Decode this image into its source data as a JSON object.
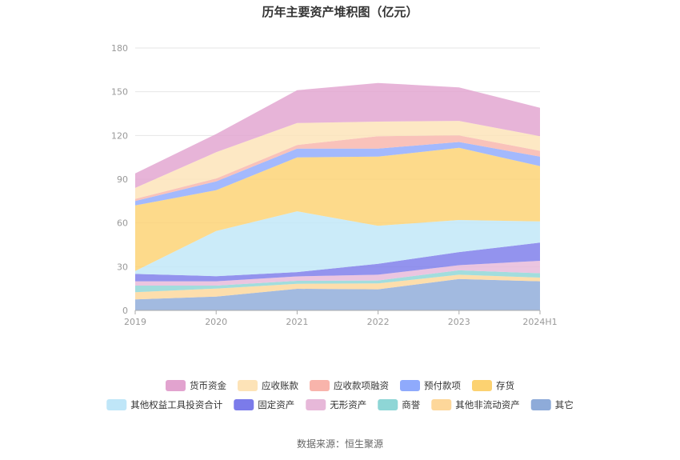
{
  "chart_data": {
    "type": "area",
    "stacked": true,
    "title": "历年主要资产堆积图（亿元）",
    "x": [
      "2019",
      "2020",
      "2021",
      "2022",
      "2023",
      "2024H1"
    ],
    "y_ticks": [
      0,
      30,
      60,
      90,
      120,
      150,
      180
    ],
    "ylim": [
      0,
      180
    ],
    "grid": true,
    "series": [
      {
        "name": "其它",
        "color": "#8eabd9",
        "values": [
          7.5,
          9.5,
          14.8,
          14.5,
          21.5,
          20.0
        ]
      },
      {
        "name": "其他非流动资产",
        "color": "#fdd79a",
        "values": [
          5.0,
          5.5,
          3.5,
          4.0,
          3.0,
          2.5
        ]
      },
      {
        "name": "商誉",
        "color": "#8ed6d6",
        "values": [
          4.5,
          2.0,
          2.0,
          2.0,
          3.0,
          3.0
        ]
      },
      {
        "name": "无形资产",
        "color": "#e7b8d9",
        "values": [
          3.0,
          3.0,
          3.0,
          4.0,
          3.5,
          8.5
        ]
      },
      {
        "name": "固定资产",
        "color": "#7b7bea",
        "values": [
          5.0,
          3.5,
          3.0,
          7.5,
          9.0,
          12.5
        ]
      },
      {
        "name": "其他权益工具投资合计",
        "color": "#bfe6f8",
        "values": [
          2.0,
          31.0,
          41.7,
          26.0,
          22.0,
          14.5
        ]
      },
      {
        "name": "存货",
        "color": "#fcd271",
        "values": [
          45.0,
          28.0,
          37.0,
          47.5,
          49.5,
          38.0
        ]
      },
      {
        "name": "预付款项",
        "color": "#8faafc",
        "values": [
          3.0,
          6.0,
          6.0,
          5.5,
          4.0,
          6.5
        ]
      },
      {
        "name": "应收款项融资",
        "color": "#f8b4ab",
        "values": [
          1.5,
          2.0,
          2.5,
          8.5,
          4.5,
          4.0
        ]
      },
      {
        "name": "应收账款",
        "color": "#fde3b7",
        "values": [
          7.5,
          18.0,
          15.0,
          10.0,
          10.0,
          10.0
        ]
      },
      {
        "name": "货币资金",
        "color": "#e2a3cf",
        "values": [
          10.0,
          12.5,
          22.5,
          26.5,
          23.0,
          19.5
        ]
      }
    ],
    "legend": {
      "placement": "bottom",
      "order": [
        "货币资金",
        "应收账款",
        "应收款项融资",
        "预付款项",
        "存货",
        "其他权益工具投资合计",
        "固定资产",
        "无形资产",
        "商誉",
        "其他非流动资产",
        "其它"
      ]
    }
  },
  "source_text": "数据来源：恒生聚源"
}
